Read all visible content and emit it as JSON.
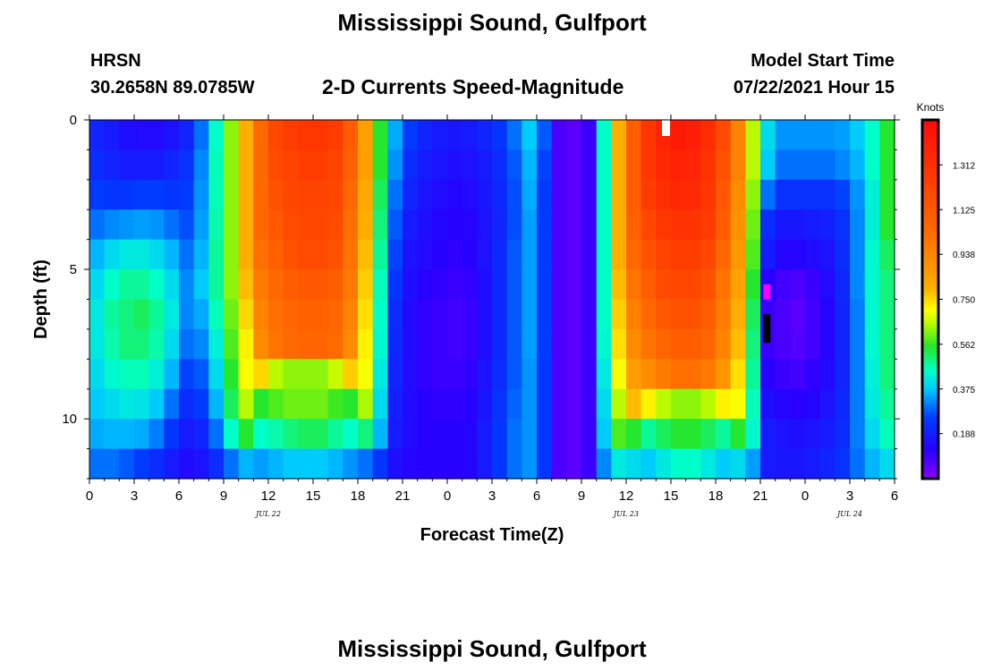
{
  "header": {
    "top_title": "Mississippi Sound, Gulfport",
    "station": "HRSN",
    "coords": "30.2658N  89.0785W",
    "product": "2-D Currents Speed-Magnitude",
    "model_label": "Model Start Time",
    "model_time": "07/22/2021 Hour 15",
    "bottom_title": "Mississippi Sound, Gulfport"
  },
  "chart_data": {
    "type": "heatmap",
    "xlabel": "Forecast Time(Z)",
    "ylabel": "Depth (ft)",
    "x_tick_labels": [
      "0",
      "3",
      "6",
      "9",
      "12",
      "15",
      "18",
      "21",
      "0",
      "3",
      "6",
      "9",
      "12",
      "15",
      "18",
      "21",
      "0",
      "3",
      "6"
    ],
    "x_range_hours": [
      0,
      54
    ],
    "date_labels": [
      {
        "hour": 12,
        "text": "JUL 22"
      },
      {
        "hour": 36,
        "text": "JUL 23"
      },
      {
        "hour": 51,
        "text": "JUL 24"
      }
    ],
    "y_tick_labels": [
      "0",
      "5",
      "10"
    ],
    "ylim_ft": [
      0,
      12
    ],
    "colorbar": {
      "title": "Knots",
      "ticks": [
        "1.312",
        "1.125",
        "0.938",
        "0.750",
        "0.562",
        "0.375",
        "0.188"
      ],
      "range": [
        0,
        1.5
      ]
    },
    "depths_ft": [
      0.5,
      1.5,
      2.5,
      3.5,
      4.5,
      5.5,
      6.5,
      7.5,
      8.5,
      9.5,
      10.5,
      11.5
    ],
    "hours": [
      0,
      1,
      2,
      3,
      4,
      5,
      6,
      7,
      8,
      9,
      10,
      11,
      12,
      13,
      14,
      15,
      16,
      17,
      18,
      19,
      20,
      21,
      22,
      23,
      24,
      25,
      26,
      27,
      28,
      29,
      30,
      31,
      32,
      33,
      34,
      35,
      36,
      37,
      38,
      39,
      40,
      41,
      42,
      43,
      44,
      45,
      46,
      47,
      48,
      49,
      50,
      51,
      52,
      53
    ],
    "values": [
      [
        0.2,
        0.18,
        0.15,
        0.14,
        0.14,
        0.16,
        0.2,
        0.3,
        0.45,
        0.62,
        0.8,
        1.05,
        1.2,
        1.25,
        1.28,
        1.28,
        1.25,
        1.1,
        0.85,
        0.55,
        0.35,
        0.25,
        0.2,
        0.18,
        0.17,
        0.18,
        0.2,
        0.24,
        0.3,
        0.38,
        0.28,
        0.08,
        0.06,
        0.1,
        0.45,
        0.8,
        1.1,
        1.28,
        1.38,
        1.42,
        1.4,
        1.32,
        1.18,
        0.95,
        0.65,
        0.4,
        0.33,
        0.33,
        0.33,
        0.33,
        0.34,
        0.38,
        0.45,
        0.55
      ],
      [
        0.22,
        0.2,
        0.18,
        0.18,
        0.18,
        0.2,
        0.23,
        0.32,
        0.46,
        0.62,
        0.8,
        1.05,
        1.18,
        1.22,
        1.25,
        1.25,
        1.22,
        1.08,
        0.85,
        0.55,
        0.33,
        0.22,
        0.18,
        0.16,
        0.15,
        0.16,
        0.18,
        0.22,
        0.28,
        0.36,
        0.26,
        0.08,
        0.06,
        0.1,
        0.45,
        0.8,
        1.1,
        1.28,
        1.35,
        1.38,
        1.37,
        1.3,
        1.15,
        0.95,
        0.65,
        0.38,
        0.3,
        0.3,
        0.3,
        0.3,
        0.32,
        0.36,
        0.45,
        0.55
      ],
      [
        0.25,
        0.24,
        0.24,
        0.25,
        0.25,
        0.24,
        0.25,
        0.33,
        0.46,
        0.62,
        0.8,
        1.05,
        1.15,
        1.2,
        1.22,
        1.22,
        1.2,
        1.05,
        0.82,
        0.52,
        0.3,
        0.2,
        0.16,
        0.14,
        0.13,
        0.14,
        0.17,
        0.21,
        0.27,
        0.35,
        0.25,
        0.08,
        0.06,
        0.1,
        0.45,
        0.8,
        1.1,
        1.25,
        1.32,
        1.35,
        1.34,
        1.28,
        1.12,
        0.92,
        0.62,
        0.3,
        0.23,
        0.23,
        0.23,
        0.23,
        0.26,
        0.33,
        0.43,
        0.55
      ],
      [
        0.3,
        0.32,
        0.33,
        0.34,
        0.33,
        0.3,
        0.27,
        0.34,
        0.47,
        0.62,
        0.8,
        1.05,
        1.12,
        1.18,
        1.2,
        1.2,
        1.18,
        1.02,
        0.8,
        0.5,
        0.28,
        0.18,
        0.15,
        0.13,
        0.12,
        0.13,
        0.16,
        0.2,
        0.27,
        0.34,
        0.25,
        0.08,
        0.06,
        0.1,
        0.45,
        0.8,
        1.08,
        1.2,
        1.28,
        1.3,
        1.3,
        1.25,
        1.1,
        0.9,
        0.6,
        0.22,
        0.17,
        0.17,
        0.18,
        0.19,
        0.23,
        0.32,
        0.43,
        0.55
      ],
      [
        0.36,
        0.4,
        0.42,
        0.42,
        0.4,
        0.36,
        0.3,
        0.36,
        0.48,
        0.62,
        0.8,
        1.02,
        1.08,
        1.15,
        1.18,
        1.18,
        1.15,
        1.0,
        0.78,
        0.48,
        0.26,
        0.16,
        0.14,
        0.12,
        0.11,
        0.12,
        0.16,
        0.21,
        0.28,
        0.34,
        0.25,
        0.08,
        0.06,
        0.1,
        0.45,
        0.8,
        1.05,
        1.15,
        1.22,
        1.25,
        1.25,
        1.2,
        1.05,
        0.87,
        0.58,
        0.18,
        0.13,
        0.13,
        0.14,
        0.16,
        0.22,
        0.32,
        0.44,
        0.52
      ],
      [
        0.4,
        0.45,
        0.48,
        0.48,
        0.45,
        0.4,
        0.32,
        0.38,
        0.48,
        0.62,
        0.78,
        0.98,
        1.05,
        1.1,
        1.12,
        1.12,
        1.1,
        0.98,
        0.76,
        0.46,
        0.24,
        0.15,
        0.12,
        0.11,
        0.1,
        0.11,
        0.15,
        0.21,
        0.28,
        0.34,
        0.25,
        0.08,
        0.06,
        0.1,
        0.45,
        0.78,
        1.0,
        1.1,
        1.18,
        1.2,
        1.2,
        1.15,
        1.0,
        0.84,
        0.55,
        0.12,
        0.09,
        0.08,
        0.1,
        0.14,
        0.21,
        0.32,
        0.44,
        0.5
      ],
      [
        0.42,
        0.48,
        0.5,
        0.52,
        0.48,
        0.42,
        0.32,
        0.35,
        0.46,
        0.6,
        0.75,
        0.95,
        1.02,
        1.06,
        1.08,
        1.08,
        1.06,
        0.95,
        0.74,
        0.45,
        0.22,
        0.14,
        0.11,
        0.1,
        0.09,
        0.1,
        0.15,
        0.21,
        0.28,
        0.34,
        0.25,
        0.08,
        0.06,
        0.1,
        0.45,
        0.76,
        0.96,
        1.05,
        1.12,
        1.15,
        1.15,
        1.1,
        0.97,
        0.8,
        0.52,
        0.1,
        0.08,
        0.06,
        0.09,
        0.13,
        0.2,
        0.31,
        0.44,
        0.5
      ],
      [
        0.42,
        0.47,
        0.5,
        0.5,
        0.47,
        0.4,
        0.3,
        0.32,
        0.43,
        0.58,
        0.72,
        0.92,
        1.0,
        1.04,
        1.06,
        1.06,
        1.04,
        0.92,
        0.72,
        0.44,
        0.21,
        0.14,
        0.11,
        0.1,
        0.09,
        0.1,
        0.15,
        0.21,
        0.28,
        0.34,
        0.25,
        0.08,
        0.06,
        0.1,
        0.44,
        0.74,
        0.92,
        1.0,
        1.06,
        1.1,
        1.1,
        1.06,
        0.94,
        0.78,
        0.5,
        0.1,
        0.08,
        0.07,
        0.09,
        0.13,
        0.2,
        0.31,
        0.44,
        0.5
      ],
      [
        0.4,
        0.44,
        0.46,
        0.46,
        0.43,
        0.36,
        0.26,
        0.28,
        0.4,
        0.55,
        0.7,
        0.75,
        0.65,
        0.62,
        0.62,
        0.62,
        0.66,
        0.76,
        0.7,
        0.42,
        0.2,
        0.14,
        0.11,
        0.1,
        0.1,
        0.11,
        0.16,
        0.22,
        0.28,
        0.33,
        0.24,
        0.08,
        0.06,
        0.1,
        0.42,
        0.7,
        0.86,
        0.92,
        0.98,
        1.02,
        1.02,
        0.98,
        0.88,
        0.74,
        0.48,
        0.12,
        0.1,
        0.09,
        0.11,
        0.14,
        0.2,
        0.31,
        0.43,
        0.5
      ],
      [
        0.38,
        0.4,
        0.42,
        0.41,
        0.38,
        0.3,
        0.22,
        0.25,
        0.36,
        0.52,
        0.65,
        0.55,
        0.58,
        0.6,
        0.6,
        0.6,
        0.57,
        0.55,
        0.64,
        0.4,
        0.19,
        0.14,
        0.12,
        0.11,
        0.11,
        0.12,
        0.17,
        0.23,
        0.29,
        0.33,
        0.24,
        0.08,
        0.06,
        0.1,
        0.4,
        0.65,
        0.78,
        0.72,
        0.65,
        0.62,
        0.62,
        0.65,
        0.72,
        0.7,
        0.46,
        0.15,
        0.13,
        0.12,
        0.13,
        0.16,
        0.21,
        0.31,
        0.42,
        0.48
      ],
      [
        0.35,
        0.36,
        0.36,
        0.35,
        0.31,
        0.24,
        0.18,
        0.2,
        0.3,
        0.45,
        0.55,
        0.45,
        0.47,
        0.5,
        0.52,
        0.52,
        0.48,
        0.45,
        0.5,
        0.36,
        0.18,
        0.14,
        0.12,
        0.12,
        0.12,
        0.13,
        0.18,
        0.24,
        0.3,
        0.33,
        0.24,
        0.08,
        0.06,
        0.1,
        0.38,
        0.58,
        0.55,
        0.48,
        0.52,
        0.55,
        0.55,
        0.52,
        0.48,
        0.55,
        0.44,
        0.18,
        0.16,
        0.15,
        0.16,
        0.18,
        0.22,
        0.31,
        0.4,
        0.46
      ],
      [
        0.3,
        0.3,
        0.28,
        0.25,
        0.22,
        0.18,
        0.14,
        0.16,
        0.22,
        0.3,
        0.36,
        0.34,
        0.36,
        0.38,
        0.38,
        0.38,
        0.36,
        0.33,
        0.3,
        0.24,
        0.15,
        0.13,
        0.12,
        0.12,
        0.12,
        0.13,
        0.18,
        0.24,
        0.3,
        0.33,
        0.24,
        0.08,
        0.06,
        0.1,
        0.32,
        0.42,
        0.4,
        0.38,
        0.42,
        0.45,
        0.45,
        0.42,
        0.38,
        0.4,
        0.34,
        0.18,
        0.17,
        0.17,
        0.18,
        0.2,
        0.23,
        0.3,
        0.36,
        0.4
      ]
    ],
    "colors": {
      "magenta_cell": "#ff00ff",
      "black_cell": "#000000",
      "white_cell": "#ffffff"
    }
  }
}
